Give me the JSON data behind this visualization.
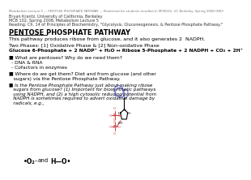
{
  "header_line": "Metabolism Lecture 5 — PENTOSE PHOSPHATE PATHWAY — Restricted for students enrolled in MCB102, UC Berkeley, Spring 2008 ONLY",
  "author_line1": "Bryan Krantz, University of California, Berkeley",
  "author_line2": "MCB 102, Spring 2008, Metabolism Lecture 5",
  "author_line3": "Reading: Ch. 14 of Principles of Biochemistry, \"Glycolysis, Gluconeogenesis, & Pentose Phosphate Pathway.\"",
  "title": "PENTOSE PHOSPHATE PATHWAY",
  "intro": "This pathway produces ribose from glucose, and it also generates 2  NADPH.",
  "two_phases": "Two Phases: [1] Oxidative Phase & [2] Non-oxidative Phase",
  "equation": "Glucose 6-Phosphate + 2 NADP⁺ + H₂O ↔ Ribose 5-Phosphate + 2 NADPH + CO₂ + 2H⁺",
  "bullet1": "■ What are pentoses? Why do we need them?",
  "sub1a": "- DNA & RNA",
  "sub1b": "- Cofactors in enzymes",
  "bullet2": "■ Where do we get them? Diet and from glucose (and other\n    sugars) via the Pentose Phosphate Pathway.",
  "bullet3_italic": "■ Is the Pentose Phosphate Pathway just about making ribose\n    sugars from glucose? (1) Important for biosynthetic pathways\n    using NADPH, and (2) a high cytosolic reducing potential from\n    NADPH is sometimes required to advert oxidative damage by\n    radicals, e.g.,",
  "radical1": "•O₂⁻",
  "and_text": "and",
  "radical2": "H—O•",
  "bg_color": "#ffffff",
  "text_color": "#000000",
  "header_color": "#555555",
  "author_color": "#333333",
  "equation_color": "#000000",
  "title_underline": true,
  "molecule_color_ring": "#7777cc",
  "molecule_color_phosphate": "#cc4444"
}
